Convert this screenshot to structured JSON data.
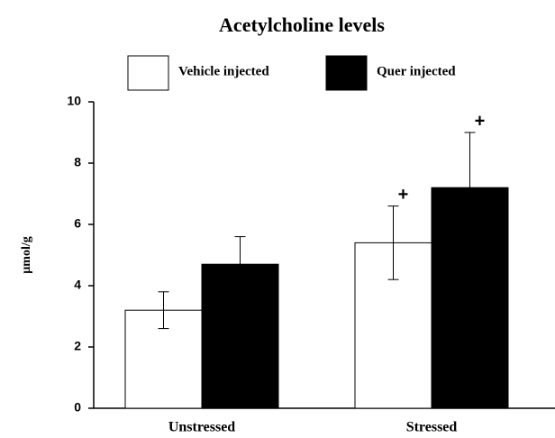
{
  "chart_data": {
    "type": "bar",
    "title": "Acetylcholine levels",
    "y_label": "µmol/g",
    "categories": [
      "Unstressed",
      "Stressed"
    ],
    "series": [
      {
        "name": "Vehicle injected",
        "color": "#ffffff",
        "values": [
          3.2,
          5.4
        ],
        "errors": [
          0.6,
          1.2
        ]
      },
      {
        "name": "Quer injected",
        "color": "#000000",
        "values": [
          4.7,
          7.2
        ],
        "errors": [
          0.9,
          1.8
        ]
      }
    ],
    "annotations": [
      {
        "text": "+",
        "category": "Stressed",
        "series": "Vehicle injected"
      },
      {
        "text": "+",
        "category": "Stressed",
        "series": "Quer injected"
      }
    ],
    "ylim": [
      0,
      10
    ],
    "yticks": [
      0,
      2,
      4,
      6,
      8,
      10
    ],
    "legend": "top"
  }
}
